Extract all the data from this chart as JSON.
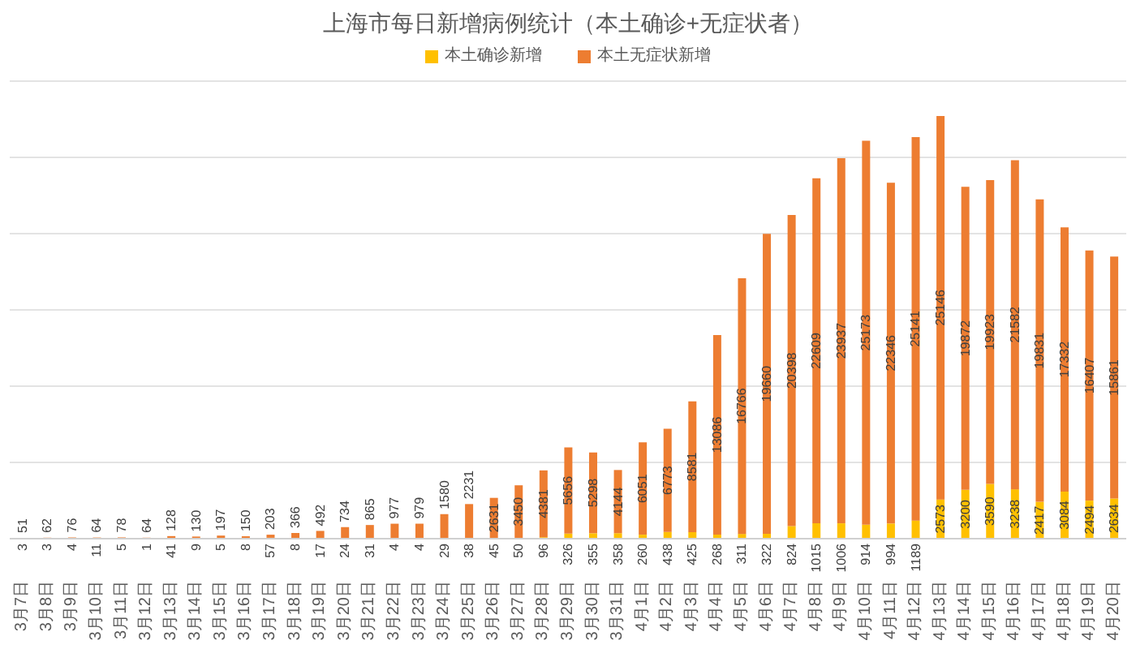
{
  "chart_data": {
    "type": "bar",
    "title": "上海市每日新增病例统计（本土确诊+无症状者）",
    "categories": [
      "3月7日",
      "3月8日",
      "3月9日",
      "3月10日",
      "3月11日",
      "3月12日",
      "3月13日",
      "3月14日",
      "3月15日",
      "3月16日",
      "3月17日",
      "3月18日",
      "3月19日",
      "3月20日",
      "3月21日",
      "3月22日",
      "3月23日",
      "3月24日",
      "3月25日",
      "3月26日",
      "3月27日",
      "3月28日",
      "3月29日",
      "3月30日",
      "3月31日",
      "4月1日",
      "4月2日",
      "4月3日",
      "4月4日",
      "4月5日",
      "4月6日",
      "4月7日",
      "4月8日",
      "4月9日",
      "4月10日",
      "4月11日",
      "4月12日",
      "4月13日",
      "4月14日",
      "4月15日",
      "4月16日",
      "4月17日",
      "4月18日",
      "4月19日",
      "4月20日"
    ],
    "series": [
      {
        "name": "本土确诊新增",
        "color": "#ffc000",
        "values": [
          3,
          3,
          4,
          11,
          5,
          1,
          41,
          9,
          5,
          8,
          57,
          8,
          17,
          24,
          31,
          4,
          4,
          29,
          38,
          45,
          50,
          96,
          326,
          355,
          358,
          260,
          438,
          425,
          268,
          311,
          322,
          824,
          1015,
          1006,
          914,
          994,
          1189,
          2573,
          3200,
          3590,
          3238,
          2417,
          3084,
          2494,
          2634
        ]
      },
      {
        "name": "本土无症状新增",
        "color": "#ed7d31",
        "values": [
          51,
          62,
          76,
          64,
          78,
          64,
          128,
          130,
          197,
          150,
          203,
          366,
          492,
          734,
          865,
          977,
          979,
          1580,
          2231,
          2631,
          3450,
          4381,
          5656,
          5298,
          4144,
          6051,
          6773,
          8581,
          13086,
          16766,
          19660,
          20398,
          22609,
          23937,
          25173,
          22346,
          25141,
          25146,
          19872,
          19923,
          21582,
          19831,
          17332,
          16407,
          15861
        ]
      }
    ],
    "stacked": true,
    "grid": "y",
    "tick_labels": "x",
    "legend": "top",
    "data_labels": true
  }
}
